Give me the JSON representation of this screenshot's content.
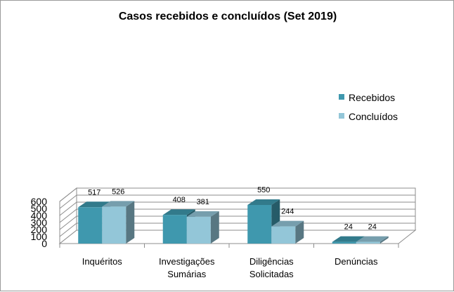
{
  "chart_data": {
    "type": "bar",
    "title": "Casos recebidos e concluídos (Set 2019)",
    "categories": [
      [
        "Inquéritos"
      ],
      [
        "Investigações",
        "Sumárias"
      ],
      [
        "Diligências",
        "Solicitadas"
      ],
      [
        "Denúncias"
      ]
    ],
    "series": [
      {
        "name": "Recebidos",
        "values": [
          517,
          408,
          550,
          24
        ],
        "color": "#3f98ae"
      },
      {
        "name": "Concluídos",
        "values": [
          526,
          381,
          244,
          24
        ],
        "color": "#93c6d8"
      }
    ],
    "ylim": [
      0,
      600
    ],
    "yticks": [
      0,
      100,
      200,
      300,
      400,
      500,
      600
    ],
    "grid": true,
    "legend_position": "right",
    "bar_style": "3d"
  }
}
